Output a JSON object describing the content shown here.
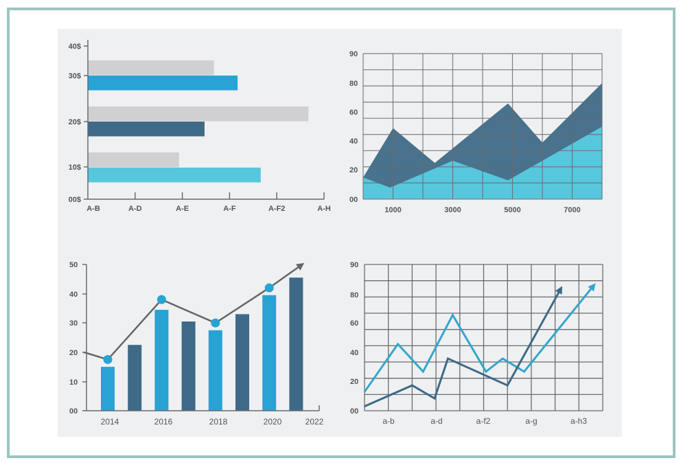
{
  "colors": {
    "gray_bar": "#d0d0d2",
    "blue": "#28a3d4",
    "dark": "#3e6a87",
    "cyan": "#57c7dd",
    "grid": "#6b6b6b",
    "accent_line": "#666666",
    "light_line": "#33a6cc"
  },
  "chart_data": [
    {
      "type": "bar",
      "orientation": "horizontal",
      "title": "",
      "y_tick_labels": [
        "40$",
        "30$",
        "20$",
        "10$",
        "00$"
      ],
      "x_tick_labels": [
        "A-B",
        "A-D",
        "A-E",
        "A-F",
        "A-F2",
        "A-H"
      ],
      "xlim": [
        0,
        5
      ],
      "groups": [
        {
          "name": "30$",
          "values": [
            {
              "series": "gray",
              "value": 2.67
            },
            {
              "series": "blue",
              "value": 3.17
            }
          ]
        },
        {
          "name": "20$",
          "values": [
            {
              "series": "gray",
              "value": 4.67
            },
            {
              "series": "dark",
              "value": 2.47
            }
          ]
        },
        {
          "name": "10$",
          "values": [
            {
              "series": "gray",
              "value": 1.93
            },
            {
              "series": "cyan",
              "value": 3.66
            }
          ]
        }
      ]
    },
    {
      "type": "area",
      "title": "",
      "y_tick_labels": [
        "90",
        "80",
        "60",
        "40",
        "20",
        "00"
      ],
      "x_tick_labels": [
        "1000",
        "3000",
        "5000",
        "7000"
      ],
      "xlim": [
        0,
        8000
      ],
      "ylim": [
        0,
        90
      ],
      "grid": true,
      "series": [
        {
          "name": "dark",
          "points": [
            [
              0,
              15
            ],
            [
              1000,
              49
            ],
            [
              2400,
              25
            ],
            [
              4850,
              66
            ],
            [
              6000,
              39
            ],
            [
              8000,
              80
            ]
          ]
        },
        {
          "name": "light",
          "points": [
            [
              0,
              15
            ],
            [
              900,
              8
            ],
            [
              3000,
              26.5
            ],
            [
              4850,
              13
            ],
            [
              8000,
              50
            ]
          ]
        }
      ]
    },
    {
      "type": "bar",
      "title": "",
      "y_tick_labels": [
        "50",
        "40",
        "30",
        "20",
        "10",
        "00"
      ],
      "x_tick_labels": [
        "2014",
        "2016",
        "2018",
        "2020",
        "2022"
      ],
      "ylim": [
        0,
        50
      ],
      "bars": [
        15,
        22.5,
        34.5,
        30.5,
        27.5,
        33,
        39.5,
        45.5
      ],
      "trend_line": {
        "points": [
          [
            -1,
            20
          ],
          [
            0,
            17.5
          ],
          [
            2,
            38
          ],
          [
            4,
            30
          ],
          [
            6,
            42
          ],
          [
            7.3,
            50.5
          ]
        ],
        "markers": [
          1,
          2,
          3,
          4
        ],
        "arrow": true
      }
    },
    {
      "type": "line",
      "title": "",
      "y_tick_labels": [
        "90",
        "80",
        "60",
        "40",
        "20",
        "00"
      ],
      "x_tick_labels": [
        "a-b",
        "a-d",
        "a-f2",
        "a-g",
        "a-h3"
      ],
      "xlim": [
        0,
        10
      ],
      "ylim": [
        0,
        90
      ],
      "grid": true,
      "series": [
        {
          "name": "light",
          "points": [
            [
              0,
              13
            ],
            [
              1.4,
              46
            ],
            [
              2.46,
              27
            ],
            [
              3.7,
              66
            ],
            [
              5.1,
              27
            ],
            [
              5.8,
              36
            ],
            [
              6.7,
              27
            ],
            [
              9.7,
              88
            ]
          ],
          "arrow": true
        },
        {
          "name": "dark",
          "points": [
            [
              0,
              3
            ],
            [
              2,
              17.5
            ],
            [
              2.94,
              8.5
            ],
            [
              3.5,
              36
            ],
            [
              6,
              17.5
            ],
            [
              8.3,
              86
            ]
          ],
          "arrow": true
        }
      ]
    }
  ]
}
